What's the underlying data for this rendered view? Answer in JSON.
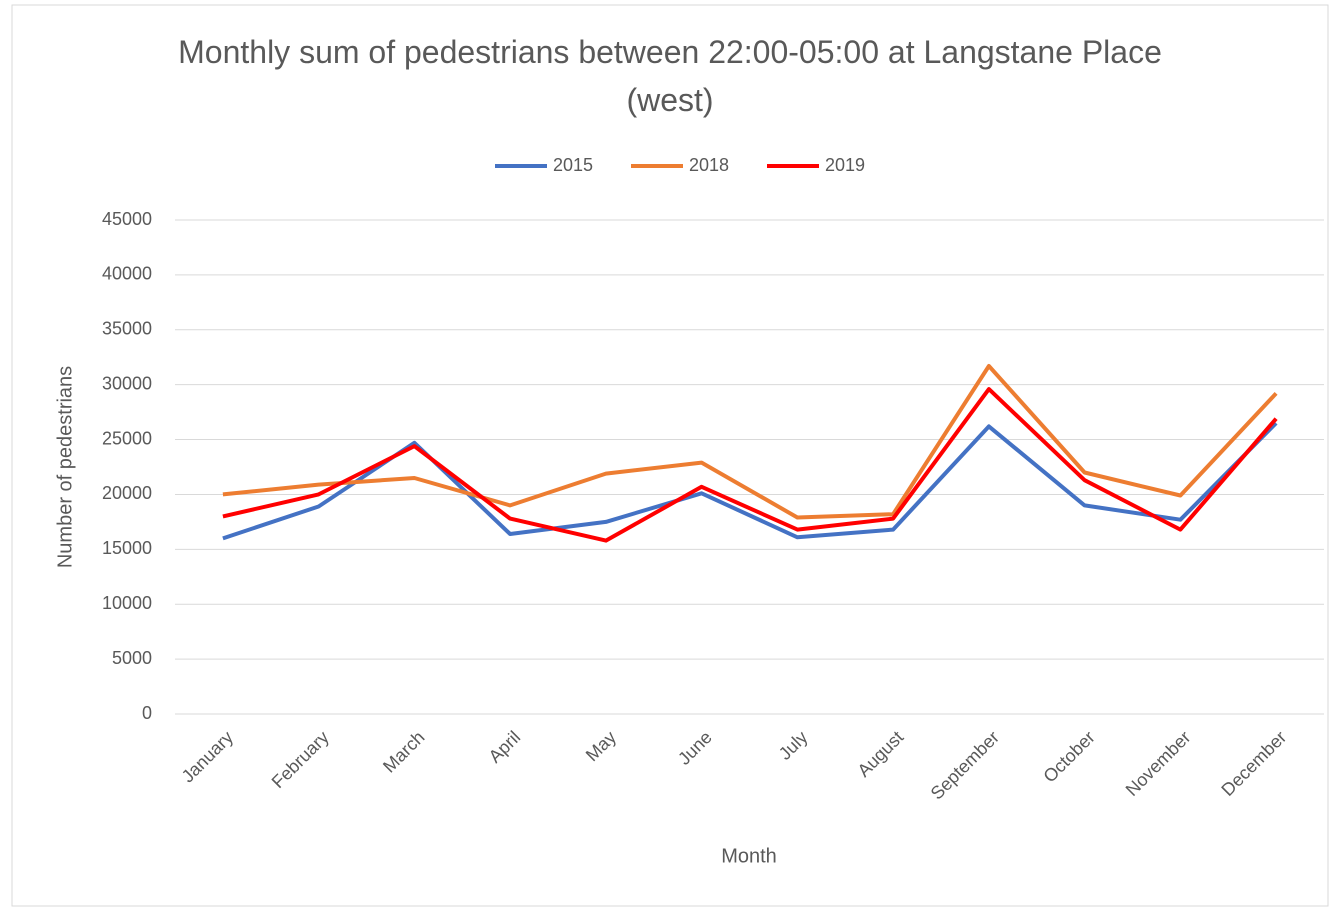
{
  "chart_data": {
    "type": "line",
    "title": "Monthly sum of pedestrians between 22:00-05:00 at Langstane Place (west)",
    "x_label": "Month",
    "y_label": "Number of pedestrians",
    "categories": [
      "January",
      "February",
      "March",
      "April",
      "May",
      "June",
      "July",
      "August",
      "September",
      "October",
      "November",
      "December"
    ],
    "series": [
      {
        "name": "2015",
        "color": "#4472c4",
        "values": [
          16000,
          18900,
          24700,
          16400,
          17500,
          20100,
          16100,
          16800,
          26200,
          19000,
          17700,
          26500
        ]
      },
      {
        "name": "2018",
        "color": "#ed7d31",
        "values": [
          20000,
          20900,
          21500,
          19000,
          21900,
          22900,
          17900,
          18200,
          31700,
          22000,
          19900,
          29200
        ]
      },
      {
        "name": "2019",
        "color": "#ff0000",
        "values": [
          18000,
          20000,
          24400,
          17800,
          15800,
          20700,
          16800,
          17800,
          29600,
          21300,
          16800,
          26900
        ]
      }
    ],
    "ylim": [
      0,
      45000
    ],
    "yticks": [
      0,
      5000,
      10000,
      15000,
      20000,
      25000,
      30000,
      35000,
      40000,
      45000
    ],
    "grid": true,
    "legend": "top"
  }
}
